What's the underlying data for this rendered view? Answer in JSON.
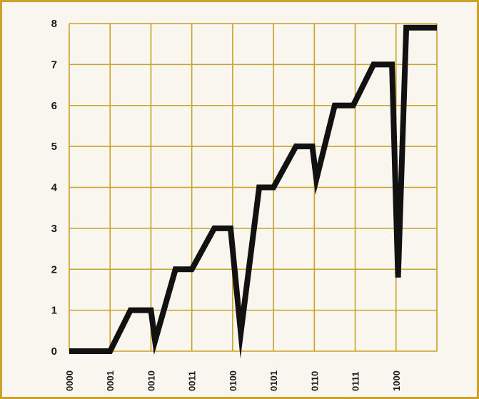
{
  "chart_data": {
    "type": "line",
    "title": "",
    "xlabel": "",
    "ylabel": "",
    "ylim": [
      0,
      8
    ],
    "yticks": [
      0,
      1,
      2,
      3,
      4,
      5,
      6,
      7,
      8
    ],
    "xlim": [
      0,
      9
    ],
    "xtick_labels": [
      "0000",
      "0001",
      "0010",
      "0011",
      "0100",
      "0101",
      "0110",
      "0111",
      "1000"
    ],
    "grid": true,
    "legend": "none",
    "colors": {
      "background": "#f8f6ef",
      "frame": "#c9a227",
      "grid": "#c9a227",
      "line": "#111111",
      "text": "#1a1a1a"
    },
    "series": [
      {
        "x": [
          0,
          1,
          1.5,
          2,
          2.1,
          2.6,
          3,
          3.55,
          3.95,
          4.2,
          4.65,
          5,
          5.55,
          5.95,
          6.05,
          6.5,
          6.95,
          7.45,
          7.9,
          8.05,
          8.25,
          9
        ],
        "y": [
          0,
          0,
          1,
          1,
          0.25,
          2,
          2,
          3,
          3,
          0.45,
          4,
          4,
          5,
          5,
          4.2,
          6,
          6,
          7,
          7,
          1.8,
          7.9,
          7.9
        ]
      }
    ]
  }
}
